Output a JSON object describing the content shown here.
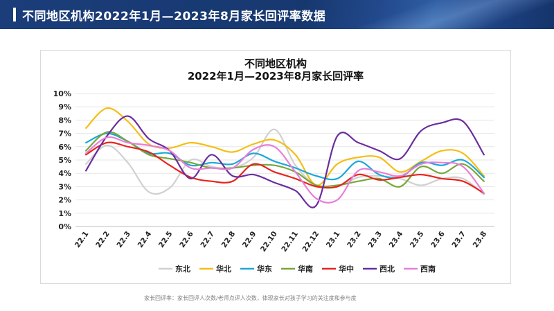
{
  "header": {
    "title": "不同地区机构2022年1月—2023年8月家长回评率数据"
  },
  "footnote": "家长回评率：家长回评人次数/老师点评人次数，体现家长对孩子学习的关注度和参与度",
  "chart_data": {
    "type": "line",
    "title_line1": "不同地区机构",
    "title_line2": "2022年1月—2023年8月家长回评率",
    "xlabel": "",
    "ylabel": "",
    "ylim": [
      0,
      10
    ],
    "yticks": [
      "0%",
      "1%",
      "2%",
      "3%",
      "4%",
      "5%",
      "6%",
      "7%",
      "8%",
      "9%",
      "10%"
    ],
    "categories": [
      "22.1",
      "22.2",
      "22.3",
      "22.4",
      "22.5",
      "22.6",
      "22.7",
      "22.8",
      "22.9",
      "22.10",
      "22.11",
      "22.12",
      "23.1",
      "23.2",
      "23.3",
      "23.4",
      "23.5",
      "23.6",
      "23.7",
      "23.8"
    ],
    "legend_position": "bottom",
    "series": [
      {
        "name": "东北",
        "color": "#d0d0d0",
        "values": [
          4.7,
          6.1,
          4.8,
          2.6,
          2.9,
          5.0,
          4.5,
          4.4,
          5.2,
          7.3,
          4.6,
          3.1,
          3.0,
          3.7,
          3.8,
          3.6,
          3.1,
          3.6,
          3.6,
          2.4
        ]
      },
      {
        "name": "华北",
        "color": "#f5be14",
        "values": [
          7.4,
          8.9,
          7.9,
          6.2,
          5.9,
          6.3,
          6.0,
          5.6,
          6.2,
          6.5,
          5.4,
          3.1,
          4.7,
          5.2,
          5.2,
          4.1,
          4.9,
          5.7,
          5.5,
          3.8
        ]
      },
      {
        "name": "华东",
        "color": "#1aa8d8",
        "values": [
          6.3,
          7.0,
          6.4,
          5.5,
          5.5,
          4.6,
          4.8,
          4.7,
          5.5,
          4.9,
          4.4,
          3.8,
          3.6,
          4.9,
          3.9,
          3.7,
          4.8,
          4.6,
          5.0,
          3.7
        ]
      },
      {
        "name": "华南",
        "color": "#76a73a",
        "values": [
          5.7,
          7.1,
          6.4,
          5.4,
          5.1,
          4.8,
          4.4,
          4.4,
          4.6,
          4.6,
          4.1,
          3.1,
          3.1,
          3.4,
          3.6,
          3.0,
          4.5,
          4.0,
          4.7,
          3.4
        ]
      },
      {
        "name": "华中",
        "color": "#e8231d",
        "values": [
          5.4,
          6.3,
          6.0,
          5.6,
          4.6,
          3.7,
          3.4,
          3.4,
          4.7,
          4.1,
          3.6,
          3.0,
          3.0,
          3.9,
          3.5,
          3.7,
          3.9,
          3.6,
          3.4,
          2.5
        ]
      },
      {
        "name": "西北",
        "color": "#6a2d9e",
        "values": [
          4.2,
          6.8,
          8.3,
          6.6,
          5.7,
          3.6,
          5.4,
          3.8,
          3.9,
          3.3,
          2.7,
          1.6,
          6.8,
          6.3,
          5.7,
          5.1,
          7.2,
          7.8,
          7.9,
          5.4
        ]
      },
      {
        "name": "西南",
        "color": "#e87ed8",
        "values": [
          5.5,
          6.7,
          6.3,
          6.1,
          5.7,
          4.4,
          4.4,
          4.4,
          5.8,
          6.0,
          4.1,
          2.1,
          2.0,
          4.2,
          4.1,
          3.8,
          4.7,
          4.8,
          4.5,
          2.5
        ]
      }
    ]
  }
}
